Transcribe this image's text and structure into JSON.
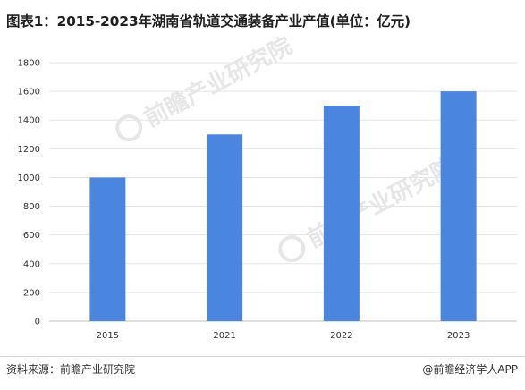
{
  "title": "图表1：2015-2023年湖南省轨道交通装备产业产值(单位：亿元)",
  "source": "资料来源：前瞻产业研究院",
  "brand": "@前瞻经济学人APP",
  "watermark_text": "前瞻产业研究院",
  "colors": {
    "bar": "#4a86e0",
    "gridline": "#e5e5e5",
    "axis": "#bfbfbf"
  },
  "chart_data": {
    "type": "bar",
    "title": "图表1：2015-2023年湖南省轨道交通装备产业产值(单位：亿元)",
    "xlabel": "",
    "ylabel": "",
    "categories": [
      "2015",
      "2021",
      "2022",
      "2023"
    ],
    "values": [
      1000,
      1300,
      1500,
      1600
    ],
    "ylim": [
      0,
      1800
    ],
    "yticks": [
      0,
      200,
      400,
      600,
      800,
      1000,
      1200,
      1400,
      1600,
      1800
    ],
    "grid": true,
    "legend": "none"
  }
}
